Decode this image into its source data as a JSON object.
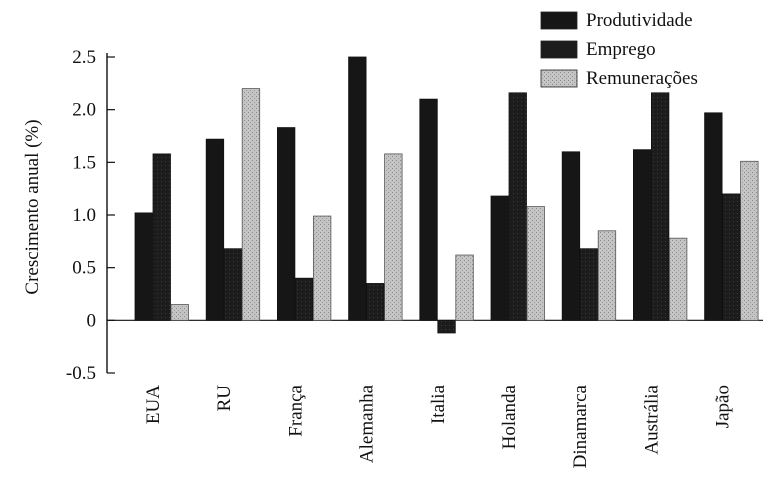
{
  "chart_data": {
    "type": "bar",
    "ylabel": "Crescimento anual (%)",
    "xlabel": "",
    "ylim": [
      -0.5,
      2.5
    ],
    "yticks": [
      "2.5",
      "2.0",
      "1.5",
      "1.0",
      "0.5",
      "0",
      "-0.5"
    ],
    "ytick_values": [
      2.5,
      2.0,
      1.5,
      1.0,
      0.5,
      0,
      -0.5
    ],
    "legend_position": "top-right",
    "grid": false,
    "categories": [
      "EUA",
      "RU",
      "França",
      "Alemanha",
      "Italia",
      "Holanda",
      "Dinamarca",
      "Austrália",
      "Japão"
    ],
    "series": [
      {
        "name": "Produtividade",
        "color": "#161616",
        "values": [
          1.02,
          1.72,
          1.83,
          2.5,
          2.1,
          1.18,
          1.6,
          1.62,
          1.97
        ]
      },
      {
        "name": "Emprego",
        "color": "#2a2a2a",
        "values": [
          1.58,
          0.68,
          0.4,
          0.35,
          -0.12,
          2.16,
          0.68,
          2.16,
          1.2
        ]
      },
      {
        "name": "Remunerações",
        "color": "#b7b7b7",
        "values": [
          0.15,
          2.2,
          0.99,
          1.58,
          0.62,
          1.08,
          0.85,
          0.78,
          1.51
        ]
      }
    ]
  }
}
